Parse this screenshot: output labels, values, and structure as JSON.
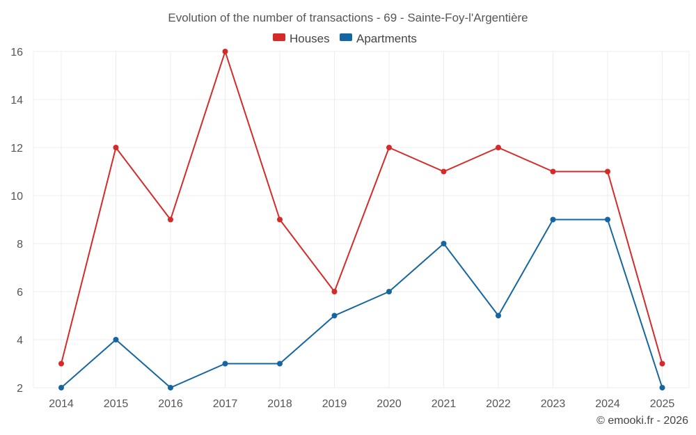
{
  "chart_data": {
    "type": "line",
    "title": "Evolution of the number of transactions - 69 - Sainte-Foy-l'Argentière",
    "categories": [
      "2014",
      "2015",
      "2016",
      "2017",
      "2018",
      "2019",
      "2020",
      "2021",
      "2022",
      "2023",
      "2024",
      "2025"
    ],
    "series": [
      {
        "name": "Houses",
        "color": "#d42a2a",
        "values": [
          3,
          12,
          9,
          16,
          9,
          6,
          12,
          11,
          12,
          11,
          11,
          3
        ]
      },
      {
        "name": "Apartments",
        "color": "#1565a0",
        "values": [
          2,
          4,
          2,
          3,
          3,
          5,
          6,
          8,
          5,
          9,
          9,
          2
        ]
      }
    ],
    "yticks": [
      2,
      4,
      6,
      8,
      10,
      12,
      14,
      16
    ],
    "ylim": [
      2,
      16
    ],
    "legend_position": "top-center",
    "grid": true,
    "credit": "© emooki.fr - 2026"
  }
}
